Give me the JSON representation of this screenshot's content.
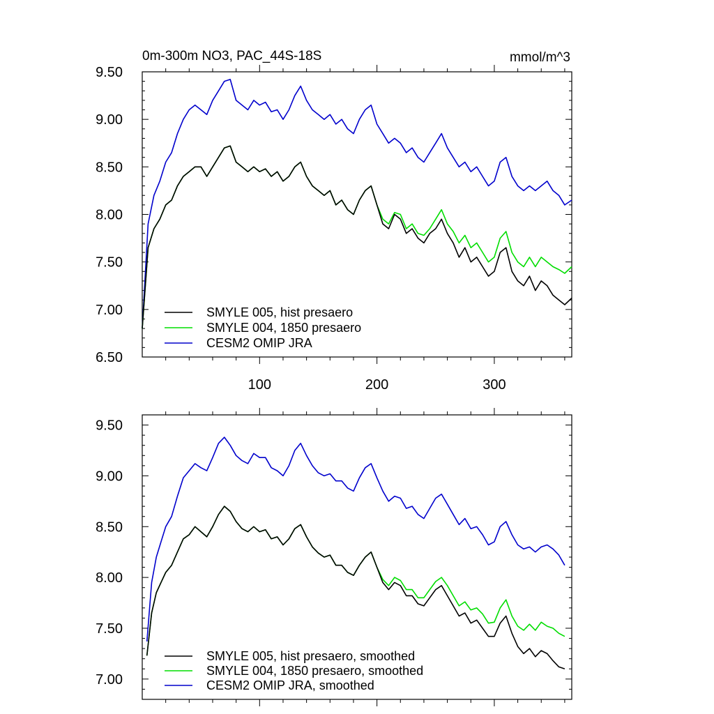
{
  "chart_data": [
    {
      "type": "line",
      "title": "0m-300m NO3, PAC_44S-18S",
      "units": "mmol/m^3",
      "xlim": [
        0,
        366
      ],
      "ylim": [
        6.5,
        9.5
      ],
      "x_ticks": [
        100,
        200,
        300
      ],
      "x_tick_labels": [
        "100",
        "200",
        "300"
      ],
      "y_ticks": [
        6.5,
        7.0,
        7.5,
        8.0,
        8.5,
        9.0,
        9.5
      ],
      "y_tick_labels": [
        "6.50",
        "7.00",
        "7.50",
        "8.00",
        "8.50",
        "9.00",
        "9.50"
      ],
      "legend_position": "bottom-left",
      "series": [
        {
          "name": "SMYLE 005, hist presaero",
          "color": "#000000",
          "x": [
            0,
            5,
            10,
            15,
            20,
            25,
            30,
            35,
            40,
            45,
            50,
            55,
            60,
            65,
            70,
            75,
            80,
            85,
            90,
            95,
            100,
            105,
            110,
            115,
            120,
            125,
            130,
            135,
            140,
            145,
            150,
            155,
            160,
            165,
            170,
            175,
            180,
            185,
            190,
            195,
            200,
            205,
            210,
            215,
            220,
            225,
            230,
            235,
            240,
            245,
            250,
            255,
            260,
            265,
            270,
            275,
            280,
            285,
            290,
            295,
            300,
            305,
            310,
            315,
            320,
            325,
            330,
            335,
            340,
            345,
            350,
            355,
            360,
            366
          ],
          "values": [
            6.8,
            7.65,
            7.85,
            7.95,
            8.1,
            8.15,
            8.3,
            8.4,
            8.45,
            8.5,
            8.5,
            8.4,
            8.5,
            8.6,
            8.7,
            8.72,
            8.55,
            8.5,
            8.45,
            8.5,
            8.45,
            8.48,
            8.4,
            8.45,
            8.35,
            8.4,
            8.5,
            8.55,
            8.4,
            8.3,
            8.25,
            8.2,
            8.25,
            8.1,
            8.15,
            8.05,
            8.0,
            8.15,
            8.25,
            8.3,
            8.1,
            7.9,
            7.85,
            8.0,
            7.95,
            7.8,
            7.85,
            7.75,
            7.7,
            7.8,
            7.85,
            7.95,
            7.8,
            7.7,
            7.55,
            7.65,
            7.5,
            7.55,
            7.45,
            7.35,
            7.4,
            7.6,
            7.65,
            7.4,
            7.3,
            7.25,
            7.35,
            7.2,
            7.3,
            7.25,
            7.15,
            7.1,
            7.05,
            7.12
          ]
        },
        {
          "name": "SMYLE 004, 1850 presaero",
          "color": "#00dd00",
          "x": [
            0,
            5,
            10,
            15,
            20,
            25,
            30,
            35,
            40,
            45,
            50,
            55,
            60,
            65,
            70,
            75,
            80,
            85,
            90,
            95,
            100,
            105,
            110,
            115,
            120,
            125,
            130,
            135,
            140,
            145,
            150,
            155,
            160,
            165,
            170,
            175,
            180,
            185,
            190,
            195,
            200,
            205,
            210,
            215,
            220,
            225,
            230,
            235,
            240,
            245,
            250,
            255,
            260,
            265,
            270,
            275,
            280,
            285,
            290,
            295,
            300,
            305,
            310,
            315,
            320,
            325,
            330,
            335,
            340,
            345,
            350,
            355,
            360,
            366
          ],
          "values": [
            6.8,
            7.65,
            7.85,
            7.95,
            8.1,
            8.15,
            8.3,
            8.4,
            8.45,
            8.5,
            8.5,
            8.4,
            8.5,
            8.6,
            8.7,
            8.72,
            8.55,
            8.5,
            8.45,
            8.5,
            8.45,
            8.48,
            8.4,
            8.45,
            8.35,
            8.4,
            8.5,
            8.55,
            8.4,
            8.3,
            8.25,
            8.2,
            8.25,
            8.1,
            8.15,
            8.05,
            8.0,
            8.15,
            8.25,
            8.3,
            8.1,
            7.95,
            7.9,
            8.02,
            8.0,
            7.85,
            7.9,
            7.8,
            7.78,
            7.85,
            7.95,
            8.05,
            7.9,
            7.82,
            7.7,
            7.78,
            7.65,
            7.7,
            7.6,
            7.5,
            7.55,
            7.75,
            7.82,
            7.6,
            7.5,
            7.45,
            7.55,
            7.45,
            7.55,
            7.5,
            7.45,
            7.42,
            7.38,
            7.45
          ]
        },
        {
          "name": "CESM2 OMIP JRA",
          "color": "#0000cc",
          "x": [
            0,
            5,
            10,
            15,
            20,
            25,
            30,
            35,
            40,
            45,
            50,
            55,
            60,
            65,
            70,
            75,
            80,
            85,
            90,
            95,
            100,
            105,
            110,
            115,
            120,
            125,
            130,
            135,
            140,
            145,
            150,
            155,
            160,
            165,
            170,
            175,
            180,
            185,
            190,
            195,
            200,
            205,
            210,
            215,
            220,
            225,
            230,
            235,
            240,
            245,
            250,
            255,
            260,
            265,
            270,
            275,
            280,
            285,
            290,
            295,
            300,
            305,
            310,
            315,
            320,
            325,
            330,
            335,
            340,
            345,
            350,
            355,
            360,
            366
          ],
          "values": [
            6.8,
            7.9,
            8.2,
            8.35,
            8.55,
            8.65,
            8.85,
            9.0,
            9.1,
            9.15,
            9.1,
            9.05,
            9.2,
            9.3,
            9.4,
            9.42,
            9.2,
            9.15,
            9.1,
            9.2,
            9.15,
            9.18,
            9.08,
            9.1,
            9.0,
            9.1,
            9.25,
            9.35,
            9.2,
            9.1,
            9.05,
            9.0,
            9.05,
            8.95,
            9.0,
            8.9,
            8.85,
            9.0,
            9.1,
            9.15,
            8.95,
            8.85,
            8.75,
            8.8,
            8.75,
            8.65,
            8.7,
            8.6,
            8.55,
            8.65,
            8.75,
            8.85,
            8.7,
            8.6,
            8.5,
            8.55,
            8.45,
            8.5,
            8.4,
            8.3,
            8.35,
            8.55,
            8.6,
            8.4,
            8.3,
            8.25,
            8.3,
            8.25,
            8.3,
            8.35,
            8.25,
            8.2,
            8.1,
            8.15
          ]
        }
      ]
    },
    {
      "type": "line",
      "title": "",
      "xlim": [
        0,
        366
      ],
      "ylim": [
        6.8,
        9.6
      ],
      "x_ticks": [
        100,
        200,
        300
      ],
      "y_ticks": [
        7.0,
        7.5,
        8.0,
        8.5,
        9.0,
        9.5
      ],
      "y_tick_labels": [
        "7.00",
        "7.50",
        "8.00",
        "8.50",
        "9.00",
        "9.50"
      ],
      "legend_position": "bottom-left",
      "series": [
        {
          "name": "SMYLE 005, hist presaero, smoothed",
          "color": "#000000",
          "x": [
            4,
            8,
            12,
            16,
            20,
            25,
            30,
            35,
            40,
            45,
            50,
            55,
            60,
            65,
            70,
            75,
            80,
            85,
            90,
            95,
            100,
            105,
            110,
            115,
            120,
            125,
            130,
            135,
            140,
            145,
            150,
            155,
            160,
            165,
            170,
            175,
            180,
            185,
            190,
            195,
            200,
            205,
            210,
            215,
            220,
            225,
            230,
            235,
            240,
            245,
            250,
            255,
            260,
            265,
            270,
            275,
            280,
            285,
            290,
            295,
            300,
            305,
            310,
            315,
            320,
            325,
            330,
            335,
            340,
            345,
            350,
            355,
            360
          ],
          "values": [
            7.23,
            7.65,
            7.85,
            7.95,
            8.05,
            8.12,
            8.25,
            8.38,
            8.42,
            8.5,
            8.45,
            8.4,
            8.5,
            8.62,
            8.7,
            8.65,
            8.55,
            8.48,
            8.45,
            8.5,
            8.45,
            8.47,
            8.38,
            8.4,
            8.32,
            8.38,
            8.48,
            8.52,
            8.4,
            8.3,
            8.24,
            8.2,
            8.22,
            8.12,
            8.12,
            8.05,
            8.02,
            8.12,
            8.2,
            8.25,
            8.1,
            7.95,
            7.88,
            7.95,
            7.92,
            7.82,
            7.82,
            7.74,
            7.72,
            7.8,
            7.88,
            7.92,
            7.82,
            7.72,
            7.62,
            7.65,
            7.55,
            7.58,
            7.5,
            7.42,
            7.42,
            7.55,
            7.62,
            7.45,
            7.32,
            7.25,
            7.3,
            7.22,
            7.28,
            7.25,
            7.18,
            7.12,
            7.1
          ]
        },
        {
          "name": "SMYLE 004, 1850 presaero, smoothed",
          "color": "#00dd00",
          "x": [
            4,
            8,
            12,
            16,
            20,
            25,
            30,
            35,
            40,
            45,
            50,
            55,
            60,
            65,
            70,
            75,
            80,
            85,
            90,
            95,
            100,
            105,
            110,
            115,
            120,
            125,
            130,
            135,
            140,
            145,
            150,
            155,
            160,
            165,
            170,
            175,
            180,
            185,
            190,
            195,
            200,
            205,
            210,
            215,
            220,
            225,
            230,
            235,
            240,
            245,
            250,
            255,
            260,
            265,
            270,
            275,
            280,
            285,
            290,
            295,
            300,
            305,
            310,
            315,
            320,
            325,
            330,
            335,
            340,
            345,
            350,
            355,
            360
          ],
          "values": [
            7.23,
            7.65,
            7.85,
            7.95,
            8.05,
            8.12,
            8.25,
            8.38,
            8.42,
            8.5,
            8.45,
            8.4,
            8.5,
            8.62,
            8.7,
            8.65,
            8.55,
            8.48,
            8.45,
            8.5,
            8.45,
            8.47,
            8.38,
            8.4,
            8.32,
            8.38,
            8.48,
            8.52,
            8.4,
            8.3,
            8.24,
            8.2,
            8.22,
            8.12,
            8.12,
            8.05,
            8.02,
            8.12,
            8.2,
            8.25,
            8.1,
            7.98,
            7.92,
            8.0,
            7.97,
            7.88,
            7.88,
            7.8,
            7.8,
            7.88,
            7.96,
            8.0,
            7.92,
            7.82,
            7.72,
            7.76,
            7.68,
            7.7,
            7.64,
            7.55,
            7.56,
            7.7,
            7.78,
            7.62,
            7.52,
            7.48,
            7.54,
            7.48,
            7.56,
            7.52,
            7.5,
            7.45,
            7.42
          ]
        },
        {
          "name": "CESM2 OMIP JRA, smoothed",
          "color": "#0000cc",
          "x": [
            4,
            8,
            12,
            16,
            20,
            25,
            30,
            35,
            40,
            45,
            50,
            55,
            60,
            65,
            70,
            75,
            80,
            85,
            90,
            95,
            100,
            105,
            110,
            115,
            120,
            125,
            130,
            135,
            140,
            145,
            150,
            155,
            160,
            165,
            170,
            175,
            180,
            185,
            190,
            195,
            200,
            205,
            210,
            215,
            220,
            225,
            230,
            235,
            240,
            245,
            250,
            255,
            260,
            265,
            270,
            275,
            280,
            285,
            290,
            295,
            300,
            305,
            310,
            315,
            320,
            325,
            330,
            335,
            340,
            345,
            350,
            355,
            360
          ],
          "values": [
            7.37,
            7.95,
            8.2,
            8.35,
            8.5,
            8.6,
            8.8,
            8.98,
            9.05,
            9.12,
            9.08,
            9.05,
            9.18,
            9.32,
            9.38,
            9.3,
            9.2,
            9.15,
            9.12,
            9.22,
            9.18,
            9.18,
            9.08,
            9.05,
            9.0,
            9.1,
            9.25,
            9.32,
            9.2,
            9.1,
            9.03,
            9.0,
            9.02,
            8.95,
            8.95,
            8.88,
            8.85,
            8.98,
            9.08,
            9.12,
            8.98,
            8.85,
            8.75,
            8.8,
            8.78,
            8.68,
            8.7,
            8.62,
            8.58,
            8.68,
            8.78,
            8.82,
            8.72,
            8.62,
            8.52,
            8.58,
            8.48,
            8.5,
            8.42,
            8.32,
            8.35,
            8.5,
            8.55,
            8.42,
            8.32,
            8.28,
            8.3,
            8.25,
            8.3,
            8.32,
            8.28,
            8.22,
            8.12
          ]
        }
      ]
    }
  ]
}
